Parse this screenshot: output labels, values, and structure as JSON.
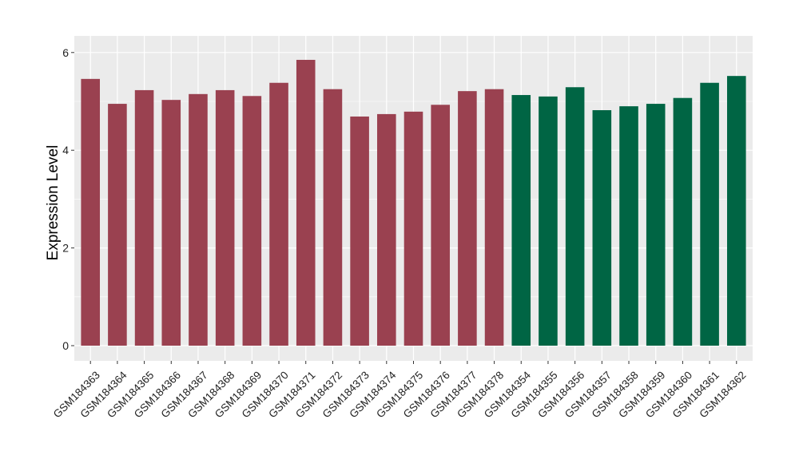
{
  "chart_data": {
    "type": "bar",
    "title": "",
    "xlabel": "",
    "ylabel": "Expression Level",
    "ylim": [
      -0.3,
      6.15
    ],
    "yticks": [
      0,
      2,
      4,
      6
    ],
    "grid": true,
    "categories": [
      "GSM184363",
      "GSM184364",
      "GSM184365",
      "GSM184366",
      "GSM184367",
      "GSM184368",
      "GSM184369",
      "GSM184370",
      "GSM184371",
      "GSM184372",
      "GSM184373",
      "GSM184374",
      "GSM184375",
      "GSM184376",
      "GSM184377",
      "GSM184378",
      "GSM184354",
      "GSM184355",
      "GSM184356",
      "GSM184357",
      "GSM184358",
      "GSM184359",
      "GSM184360",
      "GSM184361",
      "GSM184362"
    ],
    "values": [
      5.46,
      4.95,
      5.23,
      5.03,
      5.15,
      5.23,
      5.11,
      5.38,
      5.85,
      5.25,
      4.69,
      4.74,
      4.79,
      4.93,
      5.21,
      5.25,
      5.13,
      5.1,
      5.29,
      4.82,
      4.9,
      4.95,
      5.07,
      5.38,
      5.52
    ],
    "groups": [
      0,
      0,
      0,
      0,
      0,
      0,
      0,
      0,
      0,
      0,
      0,
      0,
      0,
      0,
      0,
      0,
      1,
      1,
      1,
      1,
      1,
      1,
      1,
      1,
      1
    ],
    "group_colors": [
      "#9A4150",
      "#006544"
    ]
  }
}
